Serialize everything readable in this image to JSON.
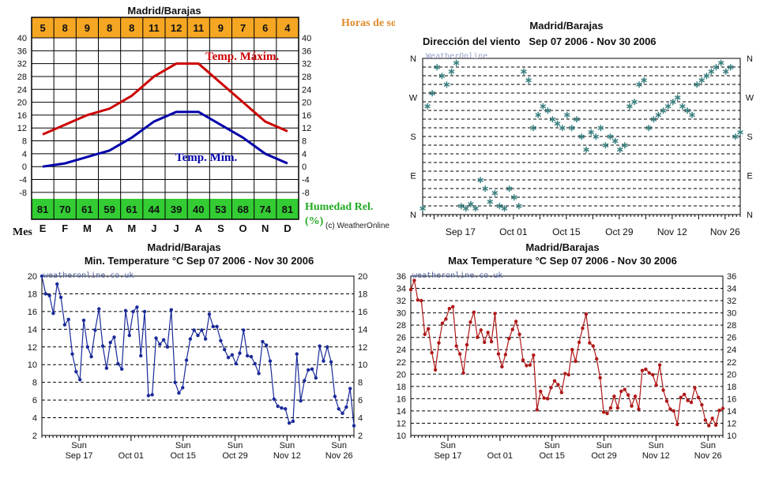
{
  "chart_data": [
    {
      "type": "line",
      "title": "Madrid/Barajas",
      "xlabel": "Mes",
      "categories": [
        "E",
        "F",
        "M",
        "A",
        "M",
        "J",
        "J",
        "A",
        "S",
        "O",
        "N",
        "D"
      ],
      "ylim": [
        -10,
        40
      ],
      "yticks": [
        40,
        36,
        32,
        28,
        24,
        20,
        16,
        12,
        8,
        4,
        0,
        -4,
        -8
      ],
      "grid": true,
      "series": [
        {
          "name": "Temp. Máxim.",
          "color": "#cc0000",
          "values": [
            10,
            13,
            16,
            18,
            22,
            28,
            32,
            32,
            26,
            20,
            14,
            11
          ]
        },
        {
          "name": "Temp. Mím.",
          "color": "#0000aa",
          "values": [
            0,
            1,
            3,
            5,
            9,
            14,
            17,
            17,
            13,
            9,
            4,
            1
          ]
        }
      ],
      "top_row": {
        "label": "Horas de sol",
        "values": [
          5,
          8,
          9,
          8,
          8,
          11,
          12,
          11,
          9,
          7,
          6,
          4
        ],
        "color": "#f5a623"
      },
      "bottom_row": {
        "label": "Humedad Rel. (%)",
        "values": [
          81,
          70,
          61,
          59,
          61,
          44,
          39,
          40,
          53,
          68,
          74,
          81
        ],
        "color": "#33cc33"
      },
      "credit": "(c) WeatherOnline"
    },
    {
      "type": "scatter",
      "title": "Madrid/Barajas",
      "subtitle": "Dirección del viento   Sep 07 2006 - Nov 30 2006",
      "watermark": "WeatherOnline",
      "x_labels": [
        "Sep 17",
        "Oct 01",
        "Oct 15",
        "Oct 29",
        "Nov 12",
        "Nov 26"
      ],
      "x_label_days": [
        10,
        24,
        38,
        52,
        66,
        80
      ],
      "y_labels": [
        "N",
        "W",
        "S",
        "E",
        "N"
      ],
      "y_label_degrees": [
        360,
        270,
        180,
        90,
        0
      ],
      "ylim": [
        0,
        360
      ],
      "xlim": [
        0,
        84
      ],
      "color": "#3b8080",
      "values_deg": [
        15,
        250,
        280,
        340,
        320,
        300,
        330,
        350,
        20,
        15,
        25,
        15,
        80,
        60,
        30,
        50,
        20,
        15,
        60,
        40,
        20,
        330,
        310,
        200,
        230,
        250,
        240,
        220,
        210,
        200,
        230,
        200,
        220,
        180,
        150,
        190,
        180,
        200,
        160,
        180,
        170,
        150,
        160,
        250,
        260,
        300,
        310,
        200,
        220,
        230,
        240,
        250,
        260,
        270,
        250,
        240,
        230,
        300,
        310,
        320,
        330,
        340,
        350,
        330,
        340,
        180,
        190
      ]
    },
    {
      "type": "line",
      "title": "Madrid/Barajas",
      "subtitle": "Min. Temperature °C Sep 07 2006 - Nov 30 2006",
      "watermark": "weatheronline.co.uk",
      "ylim": [
        2,
        20
      ],
      "yticks": [
        20,
        18,
        16,
        14,
        12,
        10,
        8,
        6,
        4,
        2
      ],
      "x_labels": [
        "Sun",
        "Sep 17",
        "Oct 01",
        "Sun",
        "Oct 15",
        "Sun",
        "Oct 29",
        "Sun",
        "Nov 12",
        "Sun",
        "Nov 26"
      ],
      "color": "#1a2a9a",
      "values": [
        20,
        18,
        17.8,
        15.8,
        19.1,
        17.6,
        14.5,
        15.1,
        11.2,
        9.2,
        8.3,
        15,
        12,
        10.9,
        13.9,
        16.3,
        12.1,
        9.6,
        12.5,
        13.1,
        10.1,
        9.5,
        16.1,
        13.3,
        16,
        16.5,
        11,
        16,
        6.5,
        6.6,
        13,
        12.3,
        12.8,
        12,
        16.2,
        8,
        6.8,
        7.4,
        10.5,
        12.9,
        13.9,
        13.3,
        13.9,
        12.9,
        15.7,
        14.3,
        14.3,
        12.7,
        11.7,
        10.8,
        11.1,
        10.1,
        11.3,
        13.9,
        11,
        10.9,
        10.1,
        9,
        12.6,
        12.2,
        10.4,
        6.1,
        5.3,
        5.1,
        5,
        3.4,
        3.6,
        11.2,
        5.9,
        8.2,
        9.4,
        9.5,
        8.5,
        12.1,
        10.4,
        12,
        10.3,
        6.4,
        5,
        4.5,
        5.2,
        7.3,
        3.1
      ]
    },
    {
      "type": "line",
      "title": "Madrid/Barajas",
      "subtitle": "Max Temperature °C Sep 07 2006 - Nov 30 2006",
      "watermark": "weatheronline.co.uk",
      "ylim": [
        10,
        36
      ],
      "yticks": [
        36,
        34,
        32,
        30,
        28,
        26,
        24,
        22,
        20,
        18,
        16,
        14,
        12,
        10
      ],
      "x_labels": [
        "Sun",
        "Sep 17",
        "Oct 01",
        "Sun",
        "Oct 15",
        "Sun",
        "Oct 29",
        "Sun",
        "Nov 12",
        "Sun",
        "Nov 26"
      ],
      "color": "#b01818",
      "values": [
        33.8,
        35.3,
        32.1,
        32,
        26.5,
        27.4,
        23.5,
        20.7,
        25.1,
        28.3,
        29,
        30.7,
        31,
        24.6,
        23.3,
        20.2,
        24.8,
        28.5,
        30.1,
        26,
        27.2,
        25.2,
        26.8,
        25.3,
        29.9,
        23.3,
        21.2,
        23.2,
        25.8,
        27.3,
        28.6,
        26.5,
        22.3,
        21.4,
        21.5,
        23.1,
        14.2,
        17.2,
        16.1,
        16,
        17.8,
        18.9,
        18.3,
        17,
        20.1,
        19.9,
        24,
        22.1,
        25.2,
        27.5,
        29.8,
        25.1,
        24.6,
        22.5,
        19.4,
        13.8,
        13.6,
        14.5,
        16.4,
        14.5,
        17.2,
        17.5,
        16.6,
        14.8,
        16.4,
        14.3,
        20.6,
        20.8,
        20.2,
        19.9,
        18.2,
        21.5,
        17.4,
        15.6,
        14.3,
        14,
        11.8,
        16.2,
        16.7,
        15.7,
        15.4,
        17.8,
        16.2,
        15,
        12.5,
        11.6,
        12.8,
        11.7,
        14.1,
        14.4
      ]
    }
  ]
}
